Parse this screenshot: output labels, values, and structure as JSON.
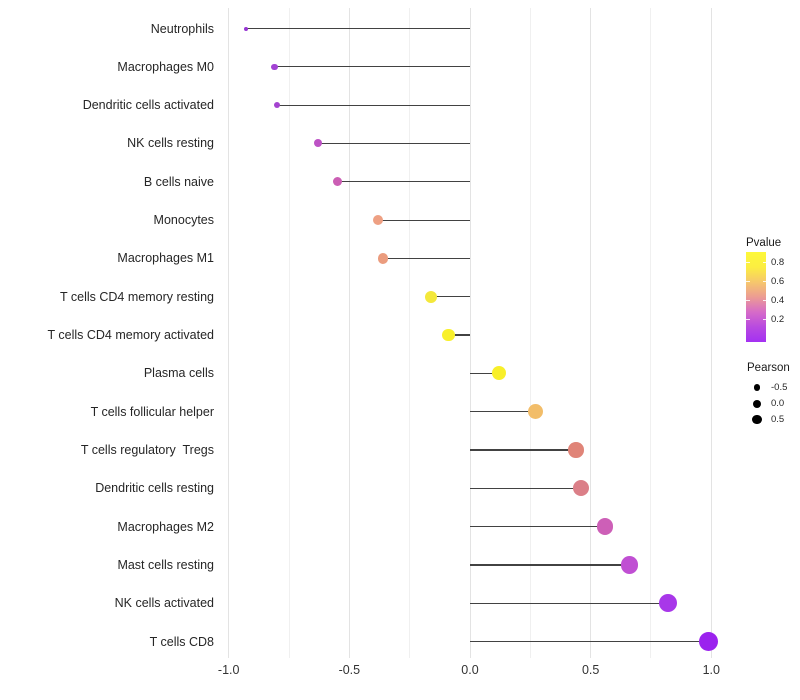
{
  "figure": {
    "background": "#ffffff",
    "chart_data": {
      "type": "lollipop",
      "orientation": "horizontal",
      "title": "",
      "xlabel": "",
      "ylabel": "",
      "xlim": [
        -1.06,
        1.09
      ],
      "grid": "on",
      "x_tick_labels": [
        "-1.0",
        "-0.5",
        "0.0",
        "0.5",
        "1.0"
      ],
      "x_tick_values": [
        -1.0,
        -0.5,
        0.0,
        0.5,
        1.0
      ],
      "minor_gridline_values": [
        -0.75,
        -0.25,
        0.25,
        0.75
      ],
      "categories": [
        "Neutrophils",
        "Macrophages M0",
        "Dendritic cells activated",
        "NK cells resting",
        "B cells naive",
        "Monocytes",
        "Macrophages M1",
        "T cells CD4 memory resting",
        "T cells CD4 memory activated",
        "Plasma cells",
        "T cells follicular helper",
        "T cells regulatory  Tregs",
        "Dendritic cells resting",
        "Macrophages M2",
        "Mast cells resting",
        "NK cells activated",
        "T cells CD8"
      ],
      "values": [
        -0.93,
        -0.81,
        -0.8,
        -0.63,
        -0.55,
        -0.38,
        -0.36,
        -0.16,
        -0.09,
        0.12,
        0.27,
        0.44,
        0.46,
        0.56,
        0.66,
        0.82,
        0.99
      ],
      "point_colors": [
        "#9636d2",
        "#a243d3",
        "#a443d0",
        "#bd52c5",
        "#cb5eb4",
        "#eea083",
        "#eb9c7e",
        "#f4e83b",
        "#f8f02b",
        "#f8ef2a",
        "#f2bd69",
        "#e08478",
        "#db7f88",
        "#cd5fb7",
        "#c04fd3",
        "#a837e9",
        "#9b22ee"
      ],
      "point_radii": [
        2,
        3.2,
        3.2,
        4,
        4.5,
        5.2,
        5.3,
        6,
        6.3,
        7,
        7.5,
        7.8,
        8,
        8.3,
        8.7,
        9.1,
        9.6
      ],
      "stick_color": "#424242",
      "major_grid_color": "#e3e3e3",
      "minor_grid_color": "#f0f0f0",
      "legend_position": "right"
    },
    "legends": {
      "pvalue": {
        "title": "Pvalue",
        "tick_labels": [
          "0.8",
          "0.6",
          "0.4",
          "0.2"
        ],
        "gradient_top_to_bottom": [
          "#fdf83a",
          "#fcee41",
          "#f6c76c",
          "#ec9c93",
          "#d66bc8",
          "#b84ae0",
          "#a431f2"
        ]
      },
      "pearson": {
        "title": "Pearson",
        "items": [
          {
            "label": "-0.5",
            "radius": 3.3
          },
          {
            "label": "0.0",
            "radius": 4.0
          },
          {
            "label": "0.5",
            "radius": 4.7
          }
        ],
        "dot_color": "#000000"
      }
    }
  }
}
